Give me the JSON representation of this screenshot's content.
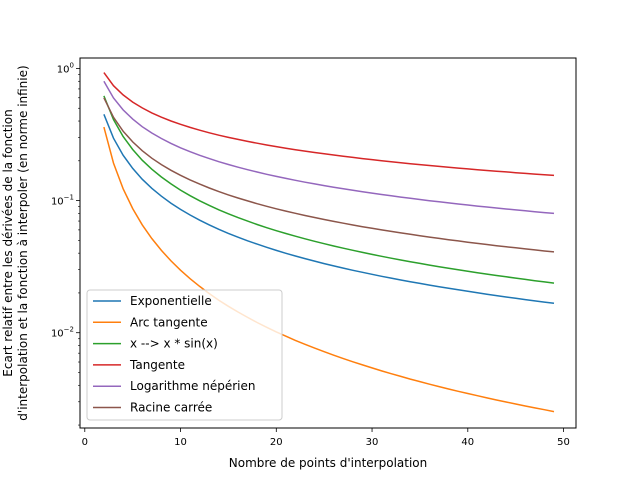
{
  "chart_data": {
    "type": "line",
    "title": "",
    "xlabel": "Nombre de points d'interpolation",
    "ylabel_lines": [
      "Ecart relatif entre les dérivées de la fonction",
      "d'interpolation et la fonction à interpoler (en norme infinie)"
    ],
    "xlim": [
      -0.5,
      51.3
    ],
    "ylim": [
      0.0019,
      1.2
    ],
    "y_scale": "log",
    "grid": false,
    "legend_position": "lower-left",
    "x_ticks": [
      0,
      10,
      20,
      30,
      40,
      50
    ],
    "x_tick_labels": [
      "0",
      "10",
      "20",
      "30",
      "40",
      "50"
    ],
    "y_ticks": [
      0.01,
      0.1,
      1
    ],
    "y_tick_labels": [
      "10",
      "10",
      "10"
    ],
    "y_tick_exponents": [
      "−2",
      "−1",
      "0"
    ],
    "x": [
      2,
      3,
      4,
      5,
      6,
      7,
      8,
      9,
      10,
      11,
      12,
      13,
      14,
      15,
      16,
      17,
      18,
      19,
      20,
      21,
      22,
      23,
      24,
      25,
      26,
      27,
      28,
      29,
      30,
      31,
      32,
      33,
      34,
      35,
      36,
      37,
      38,
      39,
      40,
      41,
      42,
      43,
      44,
      45,
      46,
      47,
      48,
      49
    ],
    "series": [
      {
        "name": "Exponentielle",
        "color": "#1f77b4",
        "a": 0.45,
        "p": 1.03
      },
      {
        "name": "Arc tangente",
        "color": "#ff7f0e",
        "a": 0.36,
        "p": 1.55
      },
      {
        "name": "x --> x * sin(x)",
        "color": "#2ca02c",
        "a": 0.62,
        "p": 1.02
      },
      {
        "name": "Tangente",
        "color": "#d62728",
        "a": 0.93,
        "p": 0.56
      },
      {
        "name": "Logarithme népérien",
        "color": "#9467bd",
        "a": 0.8,
        "p": 0.72
      },
      {
        "name": "Racine carrée",
        "color": "#8c564b",
        "a": 0.6,
        "p": 0.84
      }
    ]
  }
}
